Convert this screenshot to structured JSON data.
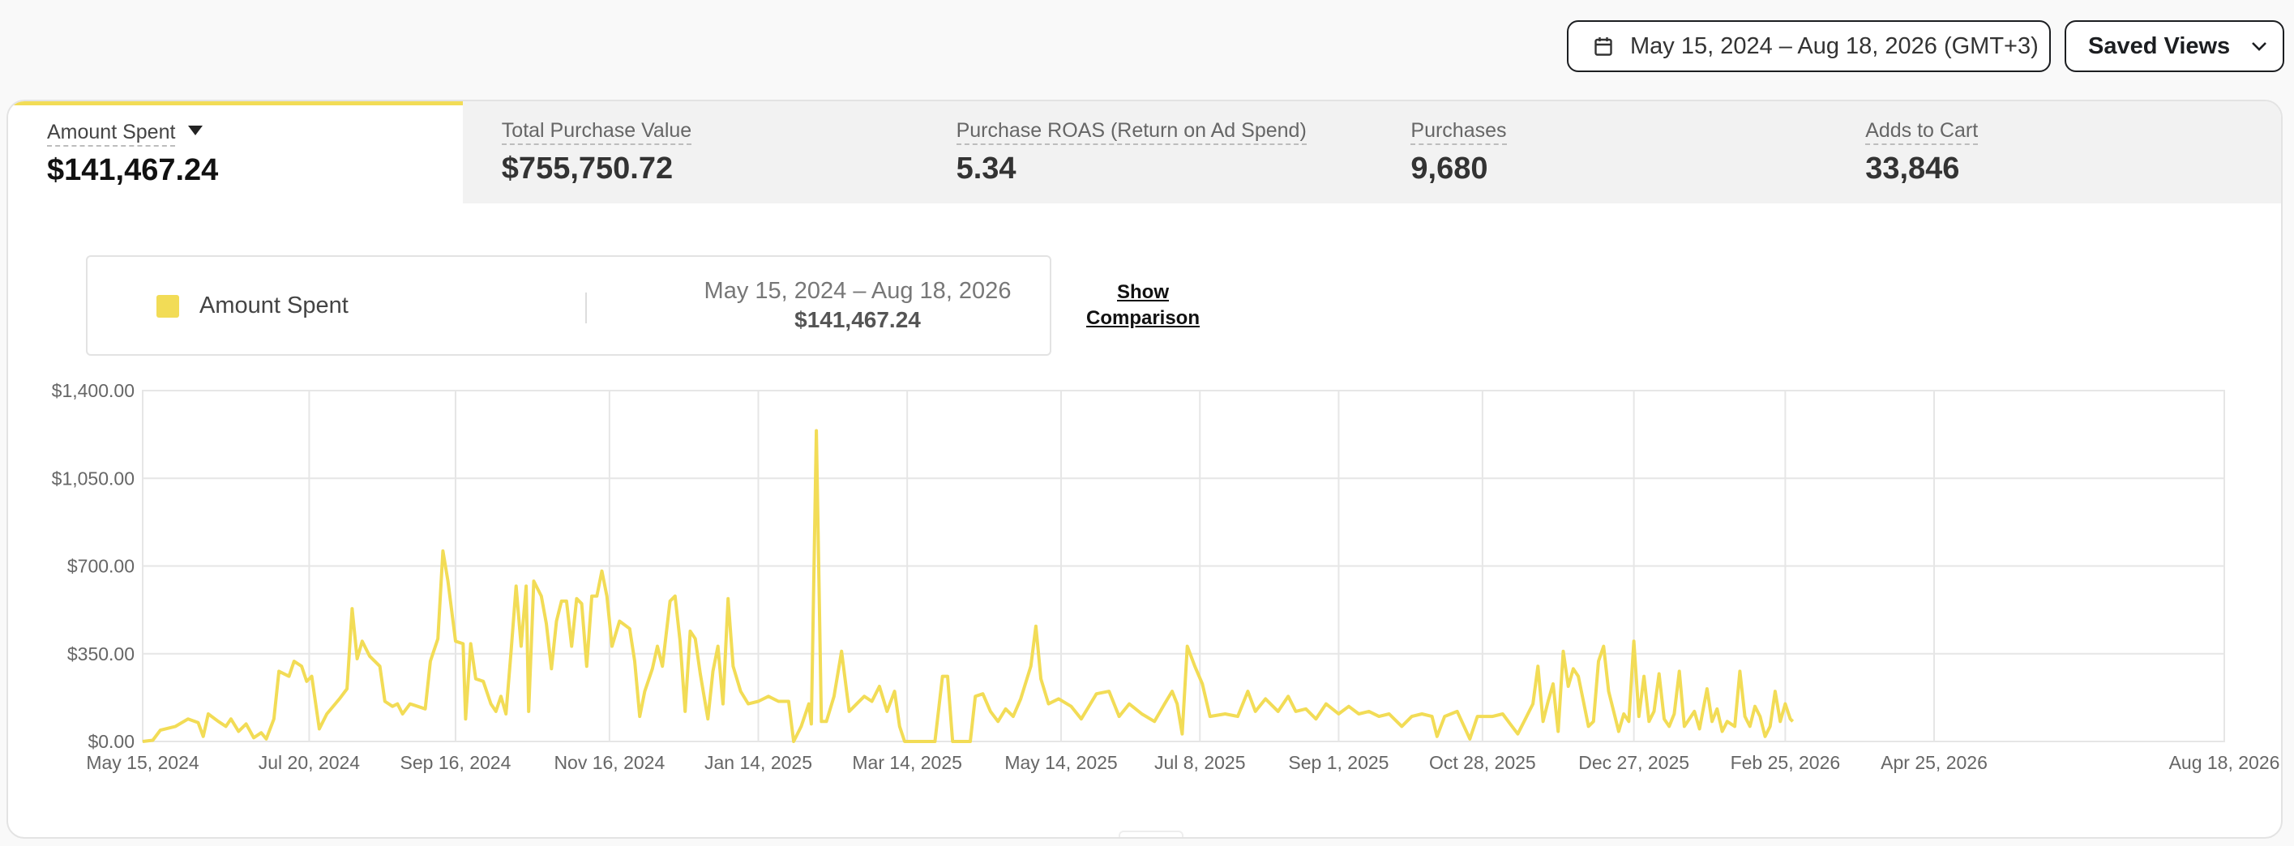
{
  "header": {
    "date_range": "May 15, 2024 – Aug 18, 2026 (GMT+3)",
    "saved_views": "Saved Views"
  },
  "metrics": [
    {
      "label": "Amount Spent",
      "value": "$141,467.24"
    },
    {
      "label": "Total Purchase Value",
      "value": "$755,750.72"
    },
    {
      "label": "Purchase ROAS (Return on Ad Spend)",
      "value": "5.34"
    },
    {
      "label": "Purchases",
      "value": "9,680"
    },
    {
      "label": "Adds to Cart",
      "value": "33,846"
    }
  ],
  "legend": {
    "name": "Amount Spent",
    "range": "May 15, 2024 – Aug 18, 2026",
    "total": "$141,467.24",
    "show_comparison": "Show Comparison"
  },
  "colors": {
    "series": "#f2dc56",
    "grid": "#e6e6e6"
  },
  "chart_data": {
    "type": "line",
    "title": "",
    "xlabel": "",
    "ylabel": "",
    "ylim": [
      0,
      1400
    ],
    "y_ticks": [
      "$1,400.00",
      "$1,050.00",
      "$700.00",
      "$350.00",
      "$0.00"
    ],
    "y_tick_values": [
      1400,
      1050,
      700,
      350,
      0
    ],
    "x_ticks": [
      "May 15, 2024",
      "Jul 20, 2024",
      "Sep 16, 2024",
      "Nov 16, 2024",
      "Jan 14, 2025",
      "Mar 14, 2025",
      "May 14, 2025",
      "Jul 8, 2025",
      "Sep 1, 2025",
      "Oct 28, 2025",
      "Dec 27, 2025",
      "Feb 25, 2026",
      "Apr 25, 2026",
      "Aug 18, 2026"
    ],
    "x_range": [
      "2024-05-15",
      "2026-08-18"
    ],
    "grid": true,
    "series": [
      {
        "name": "Amount Spent",
        "points": [
          [
            "2024-05-15",
            0
          ],
          [
            "2024-05-19",
            5
          ],
          [
            "2024-05-22",
            45
          ],
          [
            "2024-05-28",
            60
          ],
          [
            "2024-06-02",
            90
          ],
          [
            "2024-06-06",
            75
          ],
          [
            "2024-06-08",
            20
          ],
          [
            "2024-06-10",
            110
          ],
          [
            "2024-06-14",
            80
          ],
          [
            "2024-06-17",
            60
          ],
          [
            "2024-06-19",
            90
          ],
          [
            "2024-06-22",
            40
          ],
          [
            "2024-06-25",
            70
          ],
          [
            "2024-06-28",
            15
          ],
          [
            "2024-07-01",
            35
          ],
          [
            "2024-07-03",
            10
          ],
          [
            "2024-07-06",
            90
          ],
          [
            "2024-07-08",
            280
          ],
          [
            "2024-07-12",
            260
          ],
          [
            "2024-07-14",
            320
          ],
          [
            "2024-07-17",
            300
          ],
          [
            "2024-07-19",
            240
          ],
          [
            "2024-07-21",
            260
          ],
          [
            "2024-07-24",
            50
          ],
          [
            "2024-07-27",
            110
          ],
          [
            "2024-08-01",
            170
          ],
          [
            "2024-08-04",
            210
          ],
          [
            "2024-08-06",
            530
          ],
          [
            "2024-08-08",
            330
          ],
          [
            "2024-08-10",
            400
          ],
          [
            "2024-08-13",
            340
          ],
          [
            "2024-08-17",
            300
          ],
          [
            "2024-08-19",
            160
          ],
          [
            "2024-08-22",
            140
          ],
          [
            "2024-08-24",
            150
          ],
          [
            "2024-08-26",
            110
          ],
          [
            "2024-08-29",
            150
          ],
          [
            "2024-09-01",
            140
          ],
          [
            "2024-09-04",
            130
          ],
          [
            "2024-09-06",
            320
          ],
          [
            "2024-09-09",
            410
          ],
          [
            "2024-09-11",
            760
          ],
          [
            "2024-09-13",
            640
          ],
          [
            "2024-09-16",
            400
          ],
          [
            "2024-09-19",
            390
          ],
          [
            "2024-09-20",
            90
          ],
          [
            "2024-09-22",
            390
          ],
          [
            "2024-09-24",
            250
          ],
          [
            "2024-09-27",
            240
          ],
          [
            "2024-09-30",
            150
          ],
          [
            "2024-10-02",
            120
          ],
          [
            "2024-10-04",
            180
          ],
          [
            "2024-10-06",
            110
          ],
          [
            "2024-10-08",
            360
          ],
          [
            "2024-10-10",
            620
          ],
          [
            "2024-10-12",
            380
          ],
          [
            "2024-10-14",
            620
          ],
          [
            "2024-10-15",
            120
          ],
          [
            "2024-10-17",
            640
          ],
          [
            "2024-10-20",
            580
          ],
          [
            "2024-10-22",
            470
          ],
          [
            "2024-10-24",
            290
          ],
          [
            "2024-10-26",
            480
          ],
          [
            "2024-10-28",
            560
          ],
          [
            "2024-10-30",
            560
          ],
          [
            "2024-11-01",
            380
          ],
          [
            "2024-11-03",
            570
          ],
          [
            "2024-11-05",
            550
          ],
          [
            "2024-11-07",
            300
          ],
          [
            "2024-11-09",
            580
          ],
          [
            "2024-11-11",
            580
          ],
          [
            "2024-11-13",
            680
          ],
          [
            "2024-11-15",
            580
          ],
          [
            "2024-11-17",
            380
          ],
          [
            "2024-11-20",
            480
          ],
          [
            "2024-11-24",
            450
          ],
          [
            "2024-11-26",
            320
          ],
          [
            "2024-11-28",
            100
          ],
          [
            "2024-11-30",
            200
          ],
          [
            "2024-12-03",
            290
          ],
          [
            "2024-12-05",
            380
          ],
          [
            "2024-12-07",
            300
          ],
          [
            "2024-12-10",
            560
          ],
          [
            "2024-12-12",
            580
          ],
          [
            "2024-12-14",
            400
          ],
          [
            "2024-12-16",
            120
          ],
          [
            "2024-12-18",
            440
          ],
          [
            "2024-12-20",
            410
          ],
          [
            "2024-12-22",
            270
          ],
          [
            "2024-12-25",
            90
          ],
          [
            "2024-12-27",
            280
          ],
          [
            "2024-12-29",
            380
          ],
          [
            "2024-12-31",
            150
          ],
          [
            "2025-01-02",
            570
          ],
          [
            "2025-01-04",
            300
          ],
          [
            "2025-01-07",
            200
          ],
          [
            "2025-01-10",
            150
          ],
          [
            "2025-01-14",
            160
          ],
          [
            "2025-01-18",
            180
          ],
          [
            "2025-01-22",
            160
          ],
          [
            "2025-01-26",
            160
          ],
          [
            "2025-01-28",
            0
          ],
          [
            "2025-01-31",
            60
          ],
          [
            "2025-02-03",
            150
          ],
          [
            "2025-02-04",
            70
          ],
          [
            "2025-02-06",
            1240
          ],
          [
            "2025-02-08",
            80
          ],
          [
            "2025-02-10",
            80
          ],
          [
            "2025-02-13",
            180
          ],
          [
            "2025-02-16",
            360
          ],
          [
            "2025-02-19",
            120
          ],
          [
            "2025-02-22",
            150
          ],
          [
            "2025-02-25",
            180
          ],
          [
            "2025-02-28",
            160
          ],
          [
            "2025-03-03",
            220
          ],
          [
            "2025-03-06",
            120
          ],
          [
            "2025-03-09",
            200
          ],
          [
            "2025-03-11",
            60
          ],
          [
            "2025-03-13",
            0
          ],
          [
            "2025-03-25",
            0
          ],
          [
            "2025-03-28",
            260
          ],
          [
            "2025-03-30",
            260
          ],
          [
            "2025-04-01",
            0
          ],
          [
            "2025-04-08",
            0
          ],
          [
            "2025-04-10",
            180
          ],
          [
            "2025-04-13",
            190
          ],
          [
            "2025-04-16",
            120
          ],
          [
            "2025-04-19",
            80
          ],
          [
            "2025-04-22",
            130
          ],
          [
            "2025-04-25",
            100
          ],
          [
            "2025-04-28",
            170
          ],
          [
            "2025-05-02",
            300
          ],
          [
            "2025-05-04",
            460
          ],
          [
            "2025-05-06",
            250
          ],
          [
            "2025-05-09",
            150
          ],
          [
            "2025-05-13",
            170
          ],
          [
            "2025-05-18",
            140
          ],
          [
            "2025-05-22",
            90
          ],
          [
            "2025-05-25",
            140
          ],
          [
            "2025-05-28",
            190
          ],
          [
            "2025-06-02",
            200
          ],
          [
            "2025-06-06",
            100
          ],
          [
            "2025-06-10",
            150
          ],
          [
            "2025-06-15",
            110
          ],
          [
            "2025-06-20",
            80
          ],
          [
            "2025-06-24",
            150
          ],
          [
            "2025-06-27",
            200
          ],
          [
            "2025-06-29",
            150
          ],
          [
            "2025-07-01",
            30
          ],
          [
            "2025-07-03",
            380
          ],
          [
            "2025-07-06",
            300
          ],
          [
            "2025-07-09",
            230
          ],
          [
            "2025-07-12",
            100
          ],
          [
            "2025-07-18",
            110
          ],
          [
            "2025-07-23",
            100
          ],
          [
            "2025-07-27",
            200
          ],
          [
            "2025-07-30",
            120
          ],
          [
            "2025-08-03",
            170
          ],
          [
            "2025-08-08",
            120
          ],
          [
            "2025-08-12",
            180
          ],
          [
            "2025-08-15",
            120
          ],
          [
            "2025-08-19",
            130
          ],
          [
            "2025-08-23",
            90
          ],
          [
            "2025-08-27",
            150
          ],
          [
            "2025-09-01",
            110
          ],
          [
            "2025-09-05",
            140
          ],
          [
            "2025-09-09",
            110
          ],
          [
            "2025-09-13",
            120
          ],
          [
            "2025-09-17",
            100
          ],
          [
            "2025-09-21",
            110
          ],
          [
            "2025-09-26",
            60
          ],
          [
            "2025-09-30",
            100
          ],
          [
            "2025-10-04",
            110
          ],
          [
            "2025-10-08",
            100
          ],
          [
            "2025-10-10",
            20
          ],
          [
            "2025-10-13",
            100
          ],
          [
            "2025-10-18",
            120
          ],
          [
            "2025-10-23",
            10
          ],
          [
            "2025-10-26",
            100
          ],
          [
            "2025-11-01",
            100
          ],
          [
            "2025-11-05",
            110
          ],
          [
            "2025-11-08",
            70
          ],
          [
            "2025-11-11",
            30
          ],
          [
            "2025-11-14",
            90
          ],
          [
            "2025-11-17",
            150
          ],
          [
            "2025-11-19",
            300
          ],
          [
            "2025-11-21",
            80
          ],
          [
            "2025-11-23",
            160
          ],
          [
            "2025-11-25",
            230
          ],
          [
            "2025-11-27",
            40
          ],
          [
            "2025-11-29",
            360
          ],
          [
            "2025-12-01",
            220
          ],
          [
            "2025-12-03",
            290
          ],
          [
            "2025-12-05",
            260
          ],
          [
            "2025-12-07",
            160
          ],
          [
            "2025-12-09",
            60
          ],
          [
            "2025-12-11",
            80
          ],
          [
            "2025-12-13",
            320
          ],
          [
            "2025-12-15",
            380
          ],
          [
            "2025-12-17",
            200
          ],
          [
            "2025-12-19",
            120
          ],
          [
            "2025-12-21",
            40
          ],
          [
            "2025-12-23",
            110
          ],
          [
            "2025-12-25",
            80
          ],
          [
            "2025-12-27",
            400
          ],
          [
            "2025-12-29",
            100
          ],
          [
            "2025-12-31",
            260
          ],
          [
            "2026-01-02",
            80
          ],
          [
            "2026-01-04",
            120
          ],
          [
            "2026-01-06",
            270
          ],
          [
            "2026-01-08",
            90
          ],
          [
            "2026-01-10",
            60
          ],
          [
            "2026-01-12",
            110
          ],
          [
            "2026-01-14",
            280
          ],
          [
            "2026-01-16",
            60
          ],
          [
            "2026-01-18",
            90
          ],
          [
            "2026-01-20",
            120
          ],
          [
            "2026-01-22",
            50
          ],
          [
            "2026-01-25",
            210
          ],
          [
            "2026-01-27",
            80
          ],
          [
            "2026-01-29",
            130
          ],
          [
            "2026-01-31",
            40
          ],
          [
            "2026-02-02",
            80
          ],
          [
            "2026-02-05",
            60
          ],
          [
            "2026-02-07",
            280
          ],
          [
            "2026-02-09",
            100
          ],
          [
            "2026-02-11",
            60
          ],
          [
            "2026-02-13",
            140
          ],
          [
            "2026-02-15",
            100
          ],
          [
            "2026-02-17",
            20
          ],
          [
            "2026-02-19",
            60
          ],
          [
            "2026-02-21",
            200
          ],
          [
            "2026-02-23",
            80
          ],
          [
            "2026-02-25",
            150
          ],
          [
            "2026-02-27",
            90
          ],
          [
            "2026-02-28",
            80
          ]
        ]
      }
    ]
  }
}
